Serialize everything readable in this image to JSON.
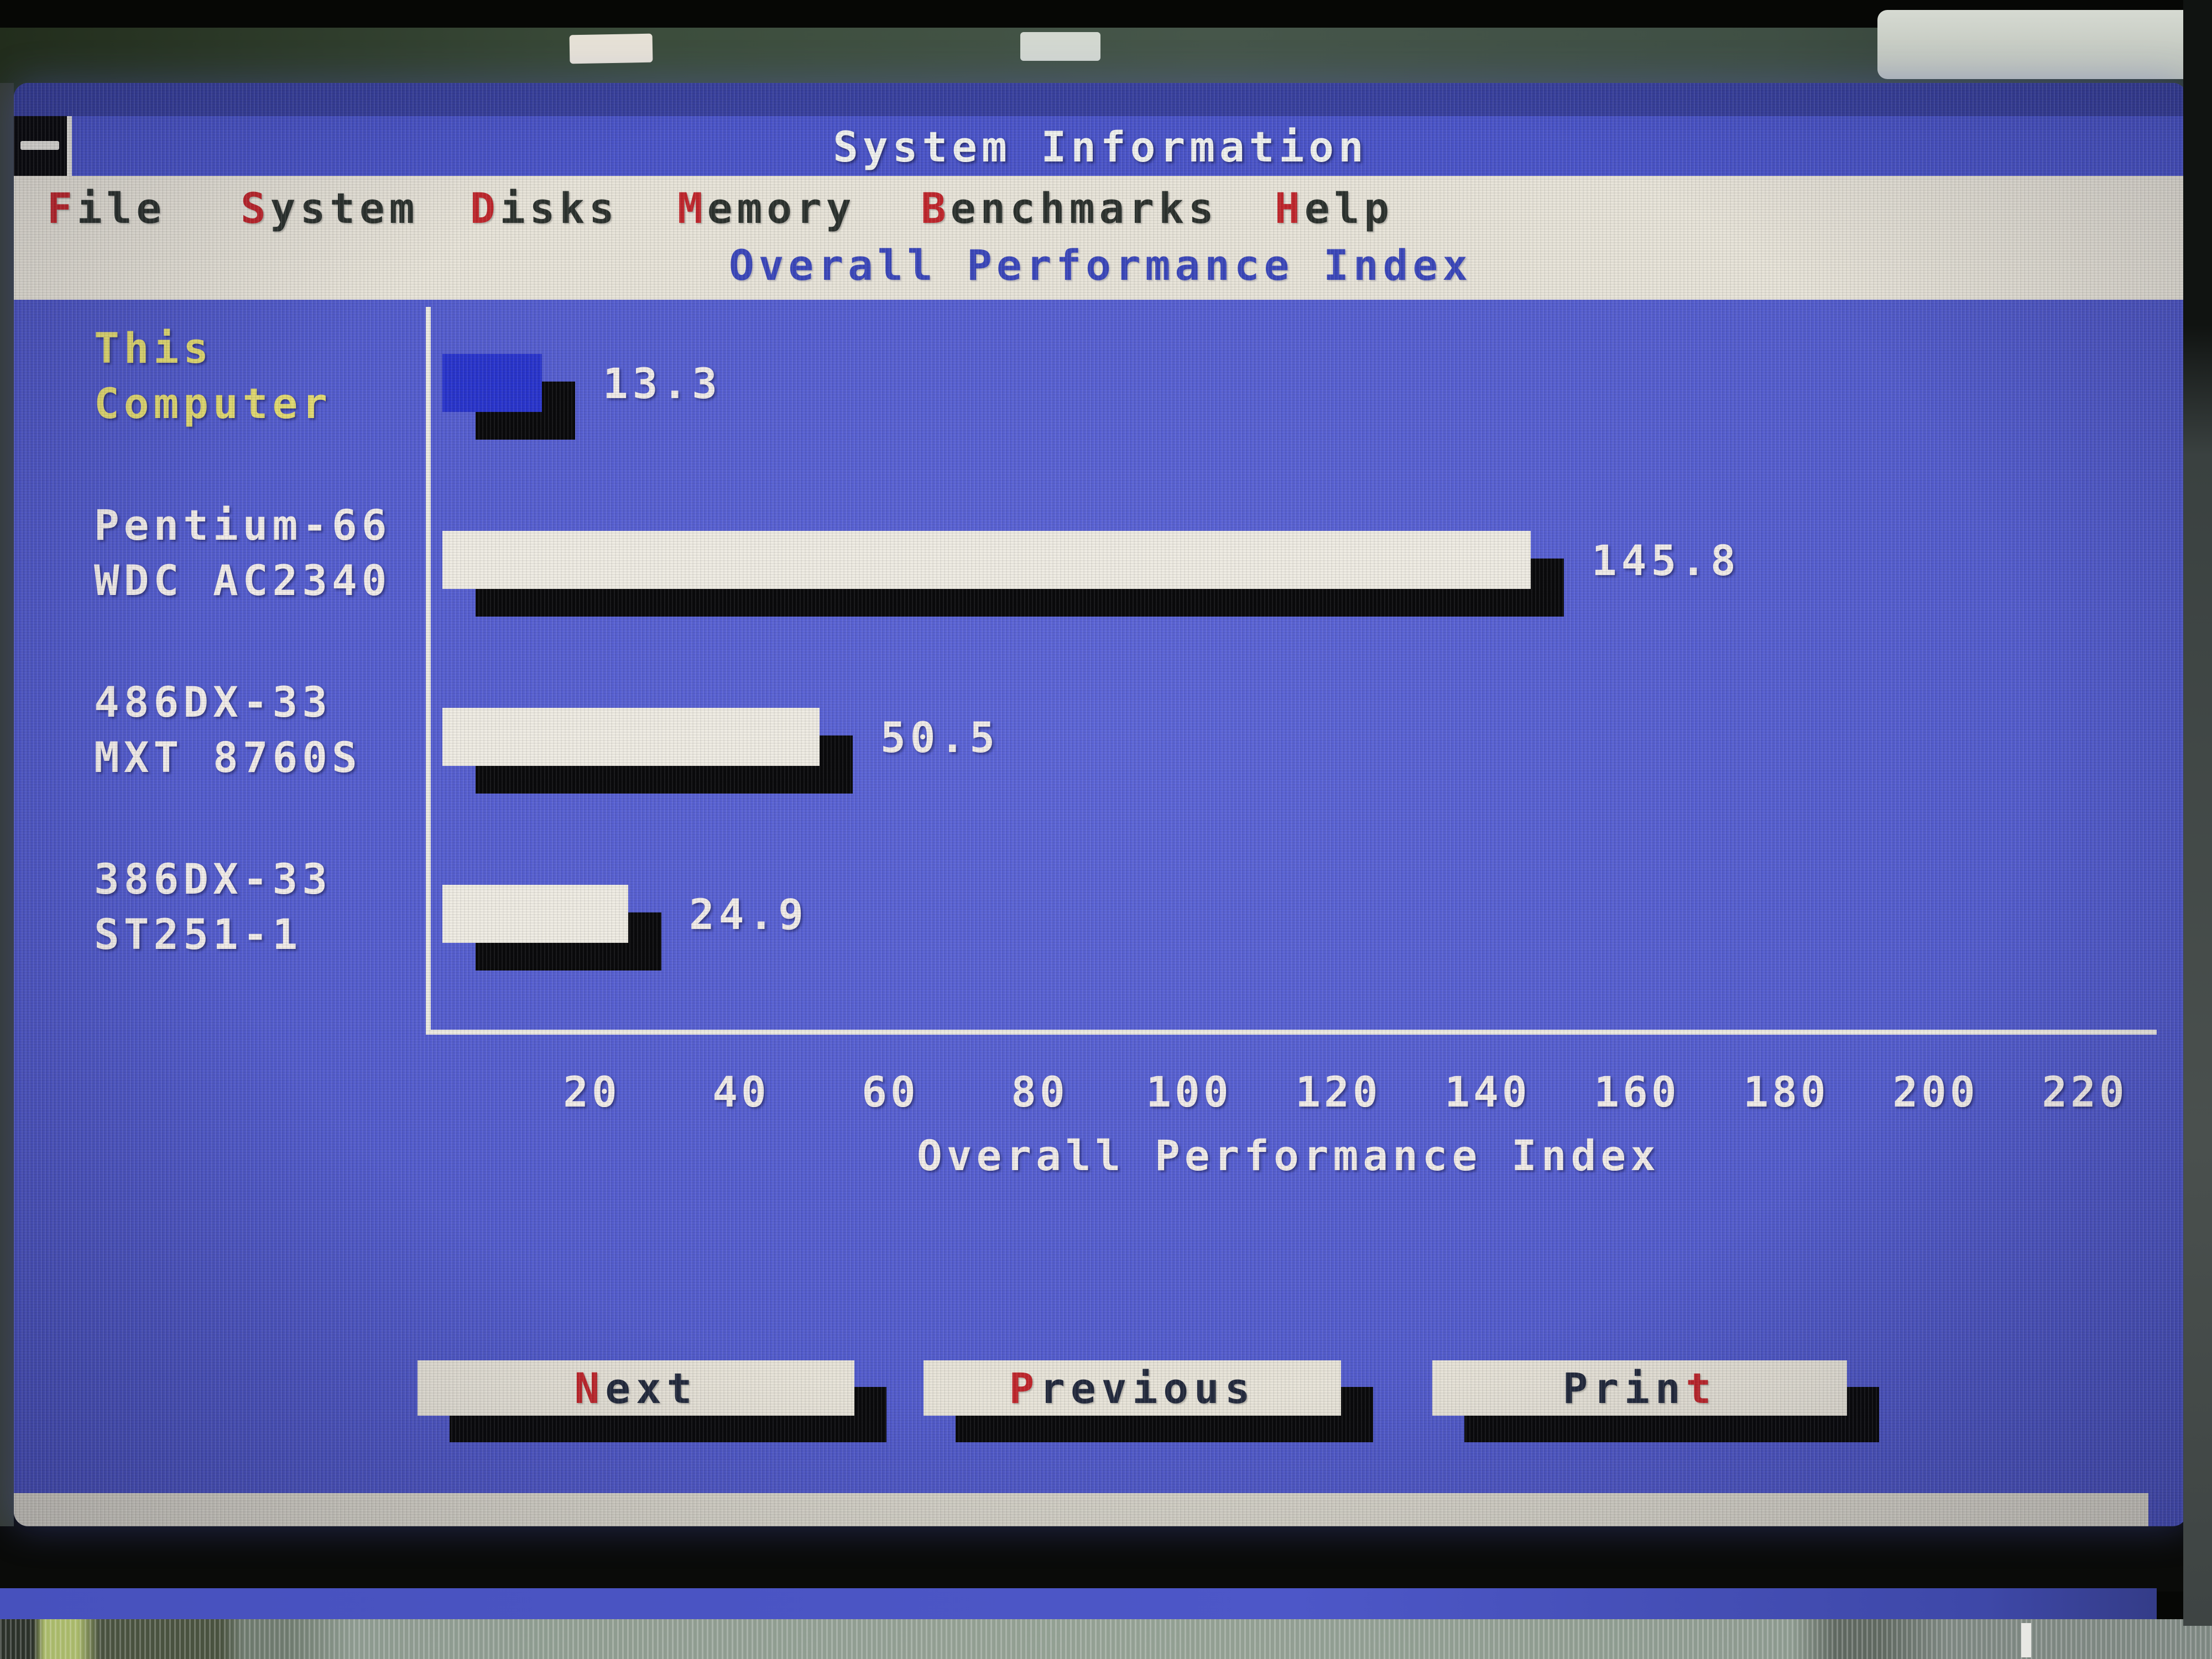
{
  "window": {
    "title": "System Information",
    "sysbox_icon": "dash-icon"
  },
  "menu": {
    "items": [
      {
        "label": "File",
        "hot": 0
      },
      {
        "label": "System",
        "hot": 0
      },
      {
        "label": "Disks",
        "hot": 0
      },
      {
        "label": "Memory",
        "hot": 0
      },
      {
        "label": "Benchmarks",
        "hot": 0
      },
      {
        "label": "Help",
        "hot": 0
      }
    ]
  },
  "subtitle": "Overall Performance Index",
  "chart_data": {
    "type": "bar",
    "orientation": "horizontal",
    "title": "Overall Performance Index",
    "xlabel": "Overall Performance Index",
    "xlim": [
      0,
      230
    ],
    "ticks": [
      20,
      40,
      60,
      80,
      100,
      120,
      140,
      160,
      180,
      200,
      220
    ],
    "grid": false,
    "legend": false,
    "rows": [
      {
        "label_lines": [
          "This",
          "Computer"
        ],
        "value": 13.3,
        "bar_color": "#2935cd",
        "label_color": "#e2da72",
        "highlight": true
      },
      {
        "label_lines": [
          "Pentium-66",
          "WDC AC2340"
        ],
        "value": 145.8,
        "bar_color": "#efece3",
        "label_color": "#f1ece9",
        "highlight": false
      },
      {
        "label_lines": [
          "486DX-33",
          "MXT 8760S"
        ],
        "value": 50.5,
        "bar_color": "#efece3",
        "label_color": "#f1ece9",
        "highlight": false
      },
      {
        "label_lines": [
          "386DX-33",
          "ST251-1"
        ],
        "value": 24.9,
        "bar_color": "#efece3",
        "label_color": "#f1ece9",
        "highlight": false
      }
    ]
  },
  "buttons": [
    {
      "label": "Next",
      "hot": 0
    },
    {
      "label": "Previous",
      "hot": 0
    },
    {
      "label": "Print",
      "hot": 4
    }
  ],
  "colors": {
    "screen_blue": "#555ecf",
    "titlebar_blue": "#4b55c9",
    "menubar_gray": "#e8e4d9",
    "hotkey_red": "#c1272d",
    "bar_white": "#efece3",
    "highlight_bar_blue": "#2935cd",
    "label_yellow": "#e2da72",
    "text_white": "#f1ece9",
    "subtitle_blue": "#3c48bb",
    "shadow_black": "#0a0a0c"
  }
}
